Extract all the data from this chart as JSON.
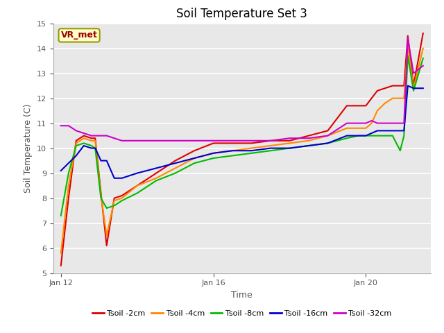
{
  "title": "Soil Temperature Set 3",
  "xlabel": "Time",
  "ylabel": "Soil Temperature (C)",
  "ylim": [
    5.0,
    15.0
  ],
  "yticks": [
    5.0,
    6.0,
    7.0,
    8.0,
    9.0,
    10.0,
    11.0,
    12.0,
    13.0,
    14.0,
    15.0
  ],
  "fig_bg_color": "#ffffff",
  "plot_bg_color": "#e8e8e8",
  "annotation_label": "VR_met",
  "annotation_bg": "#ffffcc",
  "annotation_border": "#999900",
  "annotation_text_color": "#990000",
  "series_names": [
    "Tsoil -2cm",
    "Tsoil -4cm",
    "Tsoil -8cm",
    "Tsoil -16cm",
    "Tsoil -32cm"
  ],
  "series_colors": [
    "#dd0000",
    "#ff8800",
    "#00bb00",
    "#0000cc",
    "#cc00cc"
  ],
  "series_lw": [
    1.5,
    1.5,
    1.5,
    1.5,
    1.5
  ],
  "xtick_positions": [
    0,
    4,
    8
  ],
  "xtick_labels": [
    "Jan 12",
    "Jan 16",
    "Jan 20"
  ],
  "xlim": [
    -0.2,
    9.7
  ],
  "time_points": [
    0,
    0.2,
    0.4,
    0.6,
    0.8,
    0.9,
    1.05,
    1.2,
    1.4,
    1.6,
    2.0,
    2.5,
    3.0,
    3.5,
    4.0,
    4.5,
    5.0,
    5.5,
    6.0,
    6.5,
    7.0,
    7.5,
    7.8,
    8.0,
    8.15,
    8.3,
    8.5,
    8.7,
    8.9,
    9.0,
    9.1,
    9.25,
    9.5
  ],
  "tsoil_2cm": [
    5.3,
    8.0,
    10.3,
    10.5,
    10.4,
    10.4,
    8.2,
    6.1,
    8.0,
    8.1,
    8.5,
    9.0,
    9.5,
    9.9,
    10.2,
    10.2,
    10.2,
    10.3,
    10.3,
    10.5,
    10.7,
    11.7,
    11.7,
    11.7,
    12.0,
    12.3,
    12.4,
    12.5,
    12.5,
    12.5,
    14.5,
    12.5,
    14.6
  ],
  "tsoil_4cm": [
    5.8,
    8.5,
    10.2,
    10.4,
    10.3,
    10.3,
    8.1,
    6.5,
    7.9,
    8.0,
    8.5,
    8.8,
    9.2,
    9.6,
    9.8,
    9.9,
    10.0,
    10.1,
    10.2,
    10.3,
    10.5,
    10.8,
    10.8,
    10.8,
    11.0,
    11.5,
    11.8,
    12.0,
    12.0,
    12.0,
    14.1,
    12.4,
    14.0
  ],
  "tsoil_8cm": [
    7.3,
    9.0,
    10.1,
    10.2,
    10.1,
    10.0,
    8.0,
    7.6,
    7.7,
    7.9,
    8.2,
    8.7,
    9.0,
    9.4,
    9.6,
    9.7,
    9.8,
    9.9,
    10.0,
    10.1,
    10.2,
    10.4,
    10.5,
    10.5,
    10.5,
    10.5,
    10.5,
    10.5,
    9.9,
    10.5,
    13.7,
    12.3,
    13.6
  ],
  "tsoil_16cm": [
    9.1,
    9.4,
    9.7,
    10.1,
    10.0,
    10.0,
    9.5,
    9.5,
    8.8,
    8.8,
    9.0,
    9.2,
    9.4,
    9.6,
    9.8,
    9.9,
    9.9,
    10.0,
    10.0,
    10.1,
    10.2,
    10.5,
    10.5,
    10.5,
    10.6,
    10.7,
    10.7,
    10.7,
    10.7,
    10.7,
    12.5,
    12.4,
    12.4
  ],
  "tsoil_32cm": [
    10.9,
    10.9,
    10.7,
    10.6,
    10.5,
    10.5,
    10.5,
    10.5,
    10.4,
    10.3,
    10.3,
    10.3,
    10.3,
    10.3,
    10.3,
    10.3,
    10.3,
    10.3,
    10.4,
    10.4,
    10.5,
    11.0,
    11.0,
    11.0,
    11.1,
    11.0,
    11.0,
    11.0,
    11.0,
    11.0,
    14.4,
    13.0,
    13.3
  ]
}
